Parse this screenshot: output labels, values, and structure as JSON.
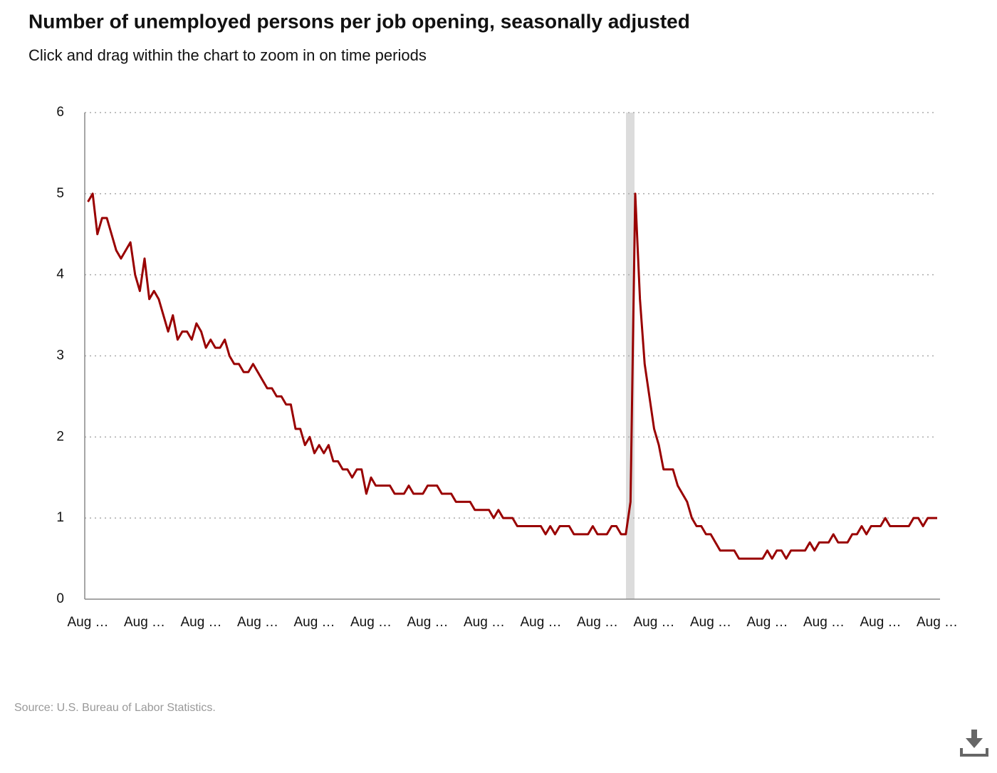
{
  "chart_data": {
    "type": "line",
    "title": "Number of unemployed persons per job opening, seasonally adjusted",
    "subtitle": "Click and drag within the chart to zoom in on time periods",
    "source": "Source: U.S. Bureau of Labor Statistics.",
    "categories": [
      "Aug …",
      null,
      null,
      null,
      null,
      null,
      null,
      null,
      null,
      null,
      null,
      null,
      "Aug …",
      null,
      null,
      null,
      null,
      null,
      null,
      null,
      null,
      null,
      null,
      null,
      "Aug …",
      null,
      null,
      null,
      null,
      null,
      null,
      null,
      null,
      null,
      null,
      null,
      "Aug …",
      null,
      null,
      null,
      null,
      null,
      null,
      null,
      null,
      null,
      null,
      null,
      "Aug …",
      null,
      null,
      null,
      null,
      null,
      null,
      null,
      null,
      null,
      null,
      null,
      "Aug …",
      null,
      null,
      null,
      null,
      null,
      null,
      null,
      null,
      null,
      null,
      null,
      "Aug …",
      null,
      null,
      null,
      null,
      null,
      null,
      null,
      null,
      null,
      null,
      null,
      "Aug …",
      null,
      null,
      null,
      null,
      null,
      null,
      null,
      null,
      null,
      null,
      null,
      "Aug …",
      null,
      null,
      null,
      null,
      null,
      null,
      null,
      null,
      null,
      null,
      null,
      "Aug …",
      null,
      null,
      null,
      null,
      null,
      null,
      null,
      null,
      null,
      null,
      null,
      "Aug …",
      null,
      null,
      null,
      null,
      null,
      null,
      null,
      null,
      null,
      null,
      null,
      "Aug …",
      null,
      null,
      null,
      null,
      null,
      null,
      null,
      null,
      null,
      null,
      null,
      "Aug …",
      null,
      null,
      null,
      null,
      null,
      null,
      null,
      null,
      null,
      null,
      null,
      "Aug …",
      null,
      null,
      null,
      null,
      null,
      null,
      null,
      null,
      null,
      null,
      null,
      "Aug …",
      null,
      null,
      null,
      null,
      null,
      null,
      null,
      null,
      null,
      null,
      null,
      "Aug …"
    ],
    "values": [
      4.9,
      5.0,
      4.5,
      4.7,
      4.7,
      4.5,
      4.3,
      4.2,
      4.3,
      4.4,
      4.0,
      3.8,
      4.2,
      3.7,
      3.8,
      3.7,
      3.5,
      3.3,
      3.5,
      3.2,
      3.3,
      3.3,
      3.2,
      3.4,
      3.3,
      3.1,
      3.2,
      3.1,
      3.1,
      3.2,
      3.0,
      2.9,
      2.9,
      2.8,
      2.8,
      2.9,
      2.8,
      2.7,
      2.6,
      2.6,
      2.5,
      2.5,
      2.4,
      2.4,
      2.1,
      2.1,
      1.9,
      2.0,
      1.8,
      1.9,
      1.8,
      1.9,
      1.7,
      1.7,
      1.6,
      1.6,
      1.5,
      1.6,
      1.6,
      1.3,
      1.5,
      1.4,
      1.4,
      1.4,
      1.4,
      1.3,
      1.3,
      1.3,
      1.4,
      1.3,
      1.3,
      1.3,
      1.4,
      1.4,
      1.4,
      1.3,
      1.3,
      1.3,
      1.2,
      1.2,
      1.2,
      1.2,
      1.1,
      1.1,
      1.1,
      1.1,
      1.0,
      1.1,
      1.0,
      1.0,
      1.0,
      0.9,
      0.9,
      0.9,
      0.9,
      0.9,
      0.9,
      0.8,
      0.9,
      0.8,
      0.9,
      0.9,
      0.9,
      0.8,
      0.8,
      0.8,
      0.8,
      0.9,
      0.8,
      0.8,
      0.8,
      0.9,
      0.9,
      0.8,
      0.8,
      1.2,
      5.0,
      3.7,
      2.9,
      2.5,
      2.1,
      1.9,
      1.6,
      1.6,
      1.6,
      1.4,
      1.3,
      1.2,
      1.0,
      0.9,
      0.9,
      0.8,
      0.8,
      0.7,
      0.6,
      0.6,
      0.6,
      0.6,
      0.5,
      0.5,
      0.5,
      0.5,
      0.5,
      0.5,
      0.6,
      0.5,
      0.6,
      0.6,
      0.5,
      0.6,
      0.6,
      0.6,
      0.6,
      0.7,
      0.6,
      0.7,
      0.7,
      0.7,
      0.8,
      0.7,
      0.7,
      0.7,
      0.8,
      0.8,
      0.9,
      0.8,
      0.9,
      0.9,
      0.9,
      1.0,
      0.9,
      0.9,
      0.9,
      0.9,
      0.9,
      1.0,
      1.0,
      0.9,
      1.0,
      1.0,
      1.0
    ],
    "color": "#990000",
    "ylim": [
      0,
      6
    ],
    "yticks": [
      0,
      1,
      2,
      3,
      4,
      5,
      6
    ],
    "grid": true
  }
}
